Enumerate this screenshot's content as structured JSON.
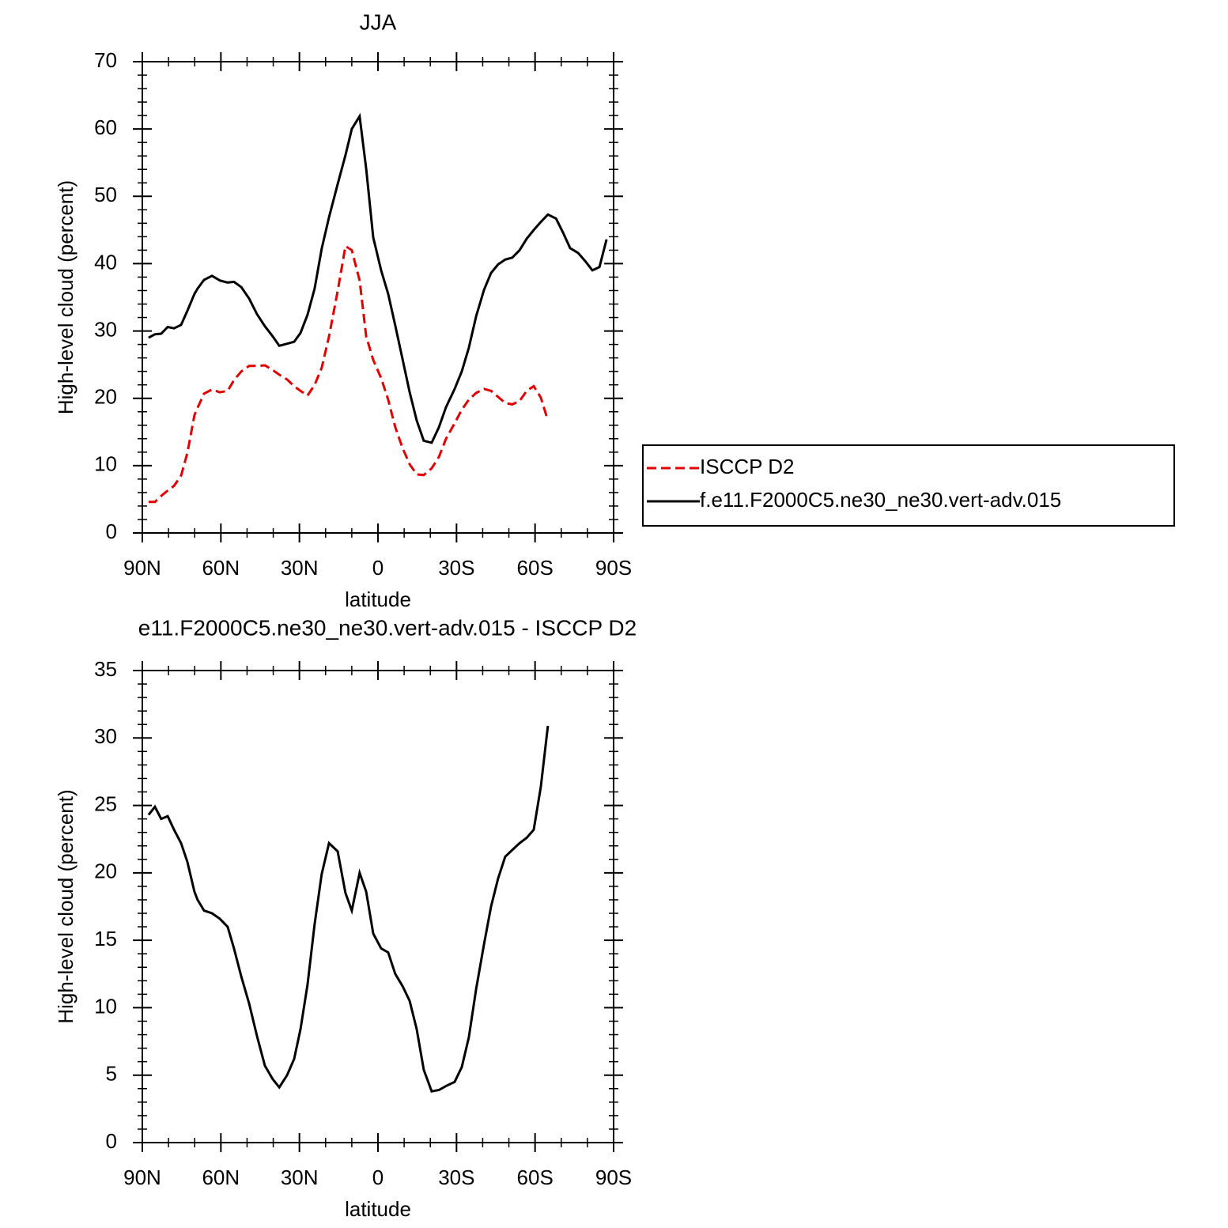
{
  "chart_data": [
    {
      "type": "line",
      "title": "JJA",
      "xlabel": "latitude",
      "ylabel": "High-level cloud (percent)",
      "x": [
        87.6,
        85.2,
        82.8,
        80.3,
        77.9,
        75.2,
        72.8,
        70.1,
        68.9,
        66.4,
        63.4,
        60.4,
        57.4,
        55.0,
        52.2,
        49.2,
        46.2,
        43.2,
        40.2,
        37.7,
        34.7,
        32.0,
        29.6,
        26.9,
        24.2,
        21.5,
        18.7,
        15.4,
        12.4,
        10.0,
        7.0,
        4.5,
        1.8,
        -1.2,
        -3.9,
        -6.6,
        -9.4,
        -12.1,
        -14.8,
        -17.5,
        -20.5,
        -23.3,
        -26.0,
        -29.3,
        -32.0,
        -34.7,
        -37.5,
        -40.5,
        -43.2,
        -45.9,
        -48.6,
        -51.3,
        -54.1,
        -56.8,
        -59.5,
        -62.2,
        -64.9,
        -68.0,
        -70.7,
        -73.4,
        -76.4,
        -79.1,
        -81.9,
        -84.6,
        -87.3
      ],
      "series": [
        {
          "name": "ISCCP D2",
          "color": "#e00000",
          "style": "dashed",
          "values": [
            4.6,
            4.6,
            5.5,
            6.3,
            7.0,
            8.5,
            11.9,
            17.5,
            18.6,
            20.7,
            21.3,
            20.9,
            21.1,
            22.7,
            24.0,
            24.8,
            24.8,
            24.9,
            24.2,
            23.5,
            22.8,
            21.8,
            21.1,
            20.4,
            22.0,
            24.5,
            29.2,
            35.9,
            42.6,
            42.0,
            37.5,
            29.2,
            25.7,
            23.0,
            19.8,
            15.7,
            12.6,
            10.2,
            8.7,
            8.6,
            9.6,
            11.3,
            14.0,
            16.3,
            18.3,
            19.8,
            20.8,
            21.4,
            21.1,
            20.2,
            19.3,
            19.1,
            19.6,
            21.1,
            21.8,
            20.1,
            16.7,
            null,
            null,
            null,
            null,
            null,
            null,
            null,
            null
          ]
        },
        {
          "name": "f.e11.F2000C5.ne30_ne30.vert-adv.015",
          "color": "#000000",
          "style": "solid",
          "values": [
            29.0,
            29.5,
            29.6,
            30.6,
            30.4,
            30.9,
            33.0,
            35.5,
            36.3,
            37.6,
            38.2,
            37.5,
            37.2,
            37.3,
            36.5,
            34.8,
            32.5,
            30.7,
            29.2,
            27.8,
            28.1,
            28.4,
            29.7,
            32.4,
            36.3,
            42.2,
            46.9,
            51.8,
            56.1,
            60.0,
            61.9,
            54.1,
            43.9,
            39.0,
            35.5,
            30.8,
            25.8,
            20.9,
            16.7,
            13.7,
            13.4,
            15.7,
            18.7,
            21.4,
            24.0,
            27.5,
            32.2,
            36.1,
            38.6,
            39.9,
            40.6,
            40.9,
            42.0,
            43.7,
            45.0,
            46.2,
            47.3,
            46.7,
            44.6,
            42.3,
            41.6,
            40.4,
            39.0,
            39.5,
            43.6
          ]
        }
      ],
      "xlim": [
        90,
        -90
      ],
      "xticks": [
        {
          "value": 90,
          "label": "90N"
        },
        {
          "value": 60,
          "label": "60N"
        },
        {
          "value": 30,
          "label": "30N"
        },
        0,
        {
          "value": -30,
          "label": "30S"
        },
        {
          "value": -60,
          "label": "60S"
        },
        {
          "value": -90,
          "label": "90S"
        }
      ],
      "ylim": [
        0,
        70
      ],
      "yticks": [
        0,
        10,
        20,
        30,
        40,
        50,
        60,
        70
      ],
      "legend": "right"
    },
    {
      "type": "line",
      "title": "e11.F2000C5.ne30_ne30.vert-adv.015 - ISCCP D2",
      "xlabel": "latitude",
      "ylabel": "High-level cloud (percent)",
      "x": [
        87.6,
        85.2,
        82.8,
        80.3,
        77.9,
        75.2,
        72.8,
        70.1,
        68.9,
        66.4,
        63.4,
        60.4,
        57.4,
        55.0,
        52.2,
        49.2,
        46.2,
        43.2,
        40.2,
        37.7,
        34.7,
        32.0,
        29.6,
        26.9,
        24.2,
        21.5,
        18.7,
        15.4,
        12.4,
        10.0,
        7.0,
        4.5,
        1.8,
        -1.2,
        -3.9,
        -6.6,
        -9.4,
        -12.1,
        -14.8,
        -17.5,
        -20.5,
        -23.3,
        -26.0,
        -29.3,
        -32.0,
        -34.7,
        -37.5,
        -40.5,
        -43.2,
        -45.9,
        -48.6,
        -51.3,
        -54.1,
        -56.8,
        -59.5,
        -62.2,
        -64.9
      ],
      "series": [
        {
          "color": "#000000",
          "style": "solid",
          "values": [
            24.3,
            24.9,
            24.0,
            24.2,
            23.2,
            22.2,
            20.8,
            18.6,
            18.0,
            17.2,
            17.0,
            16.6,
            16.0,
            14.4,
            12.3,
            10.3,
            7.9,
            5.7,
            4.7,
            4.1,
            5.0,
            6.2,
            8.4,
            11.7,
            16.2,
            19.9,
            22.2,
            21.6,
            18.5,
            17.2,
            20.0,
            18.6,
            15.5,
            14.4,
            14.1,
            12.5,
            11.6,
            10.5,
            8.4,
            5.4,
            3.8,
            3.9,
            4.2,
            4.5,
            5.6,
            7.8,
            11.4,
            14.7,
            17.5,
            19.6,
            21.2,
            21.7,
            22.2,
            22.6,
            23.2,
            26.4,
            30.9
          ]
        }
      ],
      "xlim": [
        90,
        -90
      ],
      "xticks": [
        {
          "value": 90,
          "label": "90N"
        },
        {
          "value": 60,
          "label": "60N"
        },
        {
          "value": 30,
          "label": "30N"
        },
        0,
        {
          "value": -30,
          "label": "30S"
        },
        {
          "value": -60,
          "label": "60S"
        },
        {
          "value": -90,
          "label": "90S"
        }
      ],
      "ylim": [
        0,
        35
      ],
      "yticks": [
        0,
        5,
        10,
        15,
        20,
        25,
        30,
        35
      ]
    }
  ]
}
